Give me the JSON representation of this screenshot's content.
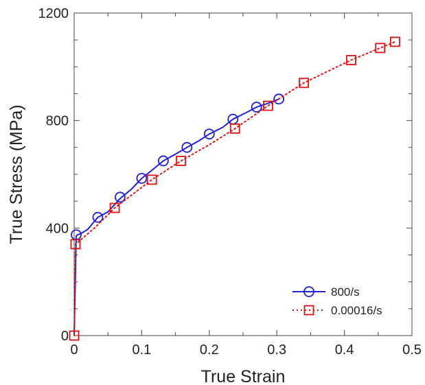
{
  "chart_data": {
    "type": "line",
    "xlabel": "True Strain",
    "ylabel": "True Stress (MPa)",
    "xlim": [
      0,
      0.5
    ],
    "ylim": [
      0,
      1200
    ],
    "x_ticks": [
      "0",
      "0.1",
      "0.2",
      "0.3",
      "0.4",
      "0.5"
    ],
    "y_ticks": [
      "0",
      "400",
      "800",
      "1200"
    ],
    "grid": false,
    "legend_position": "bottom-right",
    "series": [
      {
        "name": "800/s",
        "color": "#1f1fd6",
        "marker": "circle",
        "line_style": "solid",
        "curve": [
          [
            0,
            0
          ],
          [
            0.003,
            370
          ],
          [
            0.005,
            375
          ],
          [
            0.009,
            378
          ],
          [
            0.02,
            395
          ],
          [
            0.035,
            440
          ],
          [
            0.05,
            460
          ],
          [
            0.068,
            510
          ],
          [
            0.085,
            545
          ],
          [
            0.1,
            585
          ],
          [
            0.115,
            615
          ],
          [
            0.132,
            650
          ],
          [
            0.15,
            675
          ],
          [
            0.167,
            700
          ],
          [
            0.185,
            725
          ],
          [
            0.2,
            750
          ],
          [
            0.22,
            775
          ],
          [
            0.235,
            805
          ],
          [
            0.255,
            830
          ],
          [
            0.27,
            850
          ],
          [
            0.288,
            865
          ],
          [
            0.303,
            880
          ]
        ],
        "marker_points": [
          [
            0.003,
            375
          ],
          [
            0.035,
            440
          ],
          [
            0.068,
            515
          ],
          [
            0.1,
            585
          ],
          [
            0.132,
            650
          ],
          [
            0.167,
            700
          ],
          [
            0.2,
            750
          ],
          [
            0.235,
            805
          ],
          [
            0.27,
            850
          ],
          [
            0.303,
            880
          ]
        ]
      },
      {
        "name": "0.00016/s",
        "color": "#e01010",
        "marker": "square",
        "line_style": "dotted",
        "curve": [
          [
            0,
            0
          ],
          [
            0.002,
            340
          ],
          [
            0.03,
            400
          ],
          [
            0.06,
            475
          ],
          [
            0.115,
            580
          ],
          [
            0.158,
            650
          ],
          [
            0.2,
            710
          ],
          [
            0.238,
            770
          ],
          [
            0.287,
            855
          ],
          [
            0.34,
            940
          ],
          [
            0.41,
            1025
          ],
          [
            0.453,
            1070
          ],
          [
            0.475,
            1093
          ]
        ],
        "marker_points": [
          [
            0,
            0
          ],
          [
            0.002,
            340
          ],
          [
            0.06,
            475
          ],
          [
            0.115,
            580
          ],
          [
            0.158,
            650
          ],
          [
            0.238,
            770
          ],
          [
            0.287,
            855
          ],
          [
            0.34,
            940
          ],
          [
            0.41,
            1025
          ],
          [
            0.453,
            1070
          ],
          [
            0.475,
            1093
          ]
        ]
      }
    ]
  }
}
